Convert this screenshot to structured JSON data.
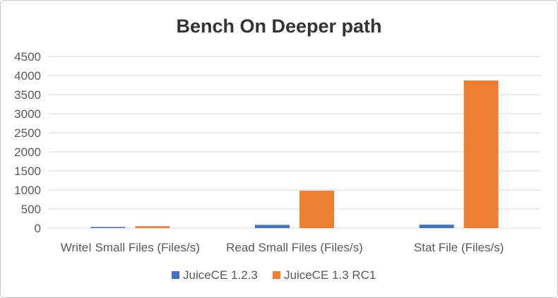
{
  "chart_data": {
    "type": "bar",
    "title": "Bench On Deeper path",
    "categories": [
      "WriteI Small Files (Files/s)",
      "Read Small Files (Files/s)",
      "Stat File (Files/s)"
    ],
    "series": [
      {
        "name": "JuiceCE 1.2.3",
        "color": "#4472c4",
        "values": [
          30,
          85,
          90
        ]
      },
      {
        "name": "JuiceCE 1.3 RC1",
        "color": "#ed7d31",
        "values": [
          50,
          980,
          3870
        ]
      }
    ],
    "yticks": [
      "0",
      "500",
      "1000",
      "1500",
      "2000",
      "2500",
      "3000",
      "3500",
      "4000",
      "4500"
    ],
    "ylim": [
      0,
      4500
    ],
    "xlabel": "",
    "ylabel": "",
    "grid": true,
    "legend": "bottom"
  }
}
